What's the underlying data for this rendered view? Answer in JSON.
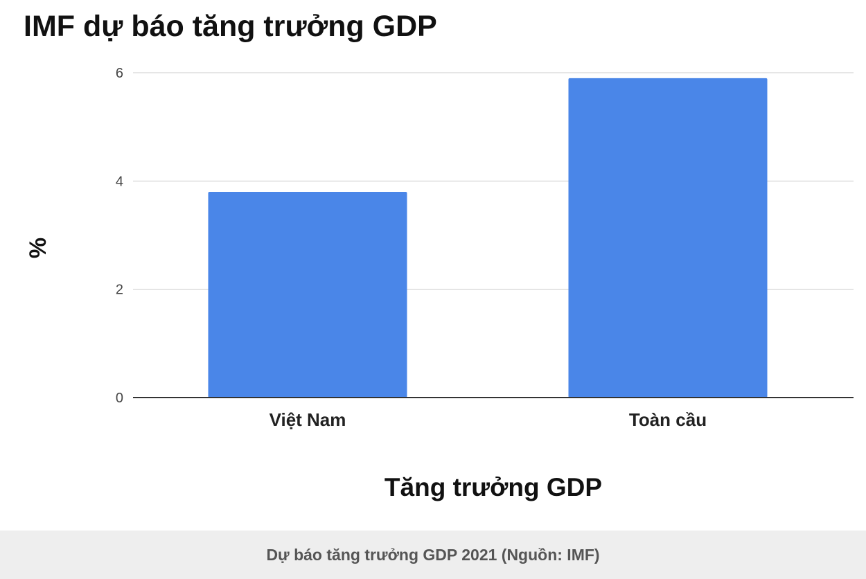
{
  "chart_data": {
    "type": "bar",
    "title": "IMF dự báo tăng trưởng GDP",
    "categories": [
      "Việt Nam",
      "Toàn cầu"
    ],
    "values": [
      3.8,
      5.9
    ],
    "xlabel": "Tăng trưởng GDP",
    "ylabel": "%",
    "ylim": [
      0,
      6
    ],
    "yticks": [
      "0",
      "2",
      "4",
      "6"
    ],
    "grid": true,
    "legend": "none",
    "bar_color": "#4a86e8"
  },
  "caption": "Dự báo tăng trưởng GDP 2021 (Nguồn: IMF)"
}
